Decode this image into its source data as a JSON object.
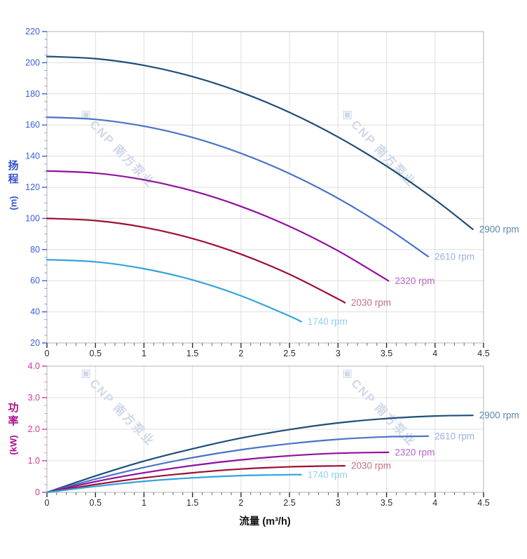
{
  "page": {
    "background": "#ffffff"
  },
  "watermark": {
    "logo": "◈",
    "text": "CNP 南方泵业",
    "color": "#cfd9e8"
  },
  "x_axis": {
    "title": "流量 (m³/h)",
    "ticks": [
      "0",
      "0.5",
      "1",
      "1.5",
      "2",
      "2.5",
      "3",
      "3.5",
      "4",
      "4.5"
    ],
    "tick_color": "#2b2b2b",
    "title_color": "#111111"
  },
  "chart_data": [
    {
      "type": "line",
      "name": "head-curves",
      "title": "",
      "xlabel": "流量 (m³/h)",
      "ylabel": "扬程 (m)",
      "ylabel_stack": [
        "扬",
        "程"
      ],
      "ylabel_unit": "(m)",
      "axis_title_color": "#3350d0",
      "tick_label_color": "#3c5fd8",
      "tick_mark_color": "#3c5fd8",
      "xlim": [
        0,
        4.5
      ],
      "ylim": [
        20,
        220
      ],
      "x_major": 0.5,
      "x_minor": 0.1,
      "y_major": 20,
      "y_minor": 5,
      "grid": true,
      "y_ticks": [
        {
          "v": 220,
          "label": "220"
        },
        {
          "v": 200,
          "label": "200"
        },
        {
          "v": 180,
          "label": "180"
        },
        {
          "v": 160,
          "label": "160"
        },
        {
          "v": 140,
          "label": "140"
        },
        {
          "v": 120,
          "label": "120"
        },
        {
          "v": 100,
          "label": "100"
        },
        {
          "v": 80,
          "label": "80"
        },
        {
          "v": 60,
          "label": "60"
        },
        {
          "v": 40,
          "label": "40"
        },
        {
          "v": 20,
          "label": "20"
        }
      ],
      "series": [
        {
          "name": "2900 rpm",
          "color": "#1e4e79",
          "label_color": "#5d86a6",
          "points": [
            [
              0,
              204
            ],
            [
              0.5,
              202.6
            ],
            [
              1,
              198.3
            ],
            [
              1.5,
              191.1
            ],
            [
              2,
              181.0
            ],
            [
              2.5,
              168.1
            ],
            [
              3,
              152.3
            ],
            [
              3.5,
              133.6
            ],
            [
              4,
              112.0
            ],
            [
              4.39,
              93.0
            ]
          ]
        },
        {
          "name": "2610 rpm",
          "color": "#4973c8",
          "label_color": "#97b1e3",
          "points": [
            [
              0,
              165
            ],
            [
              0.5,
              163.6
            ],
            [
              1,
              159.2
            ],
            [
              1.5,
              152.0
            ],
            [
              2,
              141.8
            ],
            [
              2.5,
              128.8
            ],
            [
              3,
              112.9
            ],
            [
              3.5,
              94.0
            ],
            [
              3.93,
              75.5
            ]
          ]
        },
        {
          "name": "2320 rpm",
          "color": "#90109d",
          "label_color": "#b667c6",
          "points": [
            [
              0,
              130.5
            ],
            [
              0.5,
              129.1
            ],
            [
              1,
              124.8
            ],
            [
              1.5,
              117.7
            ],
            [
              2,
              107.7
            ],
            [
              2.5,
              94.9
            ],
            [
              3,
              79.2
            ],
            [
              3.52,
              59.9
            ]
          ]
        },
        {
          "name": "2030 rpm",
          "color": "#9d1030",
          "label_color": "#c4707f",
          "points": [
            [
              0,
              100
            ],
            [
              0.5,
              98.6
            ],
            [
              1,
              94.3
            ],
            [
              1.5,
              87.1
            ],
            [
              2,
              77.0
            ],
            [
              2.5,
              64.1
            ],
            [
              3,
              48.3
            ],
            [
              3.07,
              45.8
            ]
          ]
        },
        {
          "name": "1740 rpm",
          "color": "#33a3df",
          "label_color": "#8fd0f3",
          "points": [
            [
              0,
              73.5
            ],
            [
              0.5,
              72.1
            ],
            [
              1,
              67.7
            ],
            [
              1.5,
              60.5
            ],
            [
              2,
              50.3
            ],
            [
              2.5,
              37.3
            ],
            [
              2.62,
              33.7
            ]
          ]
        }
      ]
    },
    {
      "type": "line",
      "name": "power-curves",
      "title": "",
      "xlabel": "流量 (m³/h)",
      "ylabel": "功率 (kW)",
      "ylabel_stack": [
        "功",
        "率"
      ],
      "ylabel_unit": "(kW)",
      "axis_title_color": "#a9118e",
      "tick_label_color": "#d8359c",
      "tick_mark_color": "#d8359c",
      "xlim": [
        0,
        4.5
      ],
      "ylim": [
        0,
        4
      ],
      "x_major": 0.5,
      "x_minor": 0.1,
      "y_major": 1,
      "y_minor": 0.25,
      "grid": true,
      "y_ticks": [
        {
          "v": 4,
          "label": "4.0"
        },
        {
          "v": 3,
          "label": "3.0"
        },
        {
          "v": 2,
          "label": "2.0"
        },
        {
          "v": 1,
          "label": "1.0"
        },
        {
          "v": 0,
          "label": "0"
        }
      ],
      "series": [
        {
          "name": "2900 rpm",
          "color": "#1e4e79",
          "label_color": "#5d86a6",
          "points": [
            [
              0,
              0
            ],
            [
              0.5,
              0.52
            ],
            [
              1,
              0.99
            ],
            [
              1.5,
              1.38
            ],
            [
              2,
              1.72
            ],
            [
              2.5,
              1.99
            ],
            [
              3,
              2.2
            ],
            [
              3.5,
              2.34
            ],
            [
              4,
              2.42
            ],
            [
              4.39,
              2.44
            ]
          ]
        },
        {
          "name": "2610 rpm",
          "color": "#4973c8",
          "label_color": "#97b1e3",
          "points": [
            [
              0,
              0
            ],
            [
              0.5,
              0.42
            ],
            [
              1,
              0.79
            ],
            [
              1.5,
              1.1
            ],
            [
              2,
              1.35
            ],
            [
              2.5,
              1.54
            ],
            [
              3,
              1.68
            ],
            [
              3.5,
              1.76
            ],
            [
              3.93,
              1.78
            ]
          ]
        },
        {
          "name": "2320 rpm",
          "color": "#90109d",
          "label_color": "#b667c6",
          "points": [
            [
              0,
              0
            ],
            [
              0.5,
              0.34
            ],
            [
              1,
              0.62
            ],
            [
              1.5,
              0.85
            ],
            [
              2,
              1.03
            ],
            [
              2.5,
              1.16
            ],
            [
              3,
              1.24
            ],
            [
              3.52,
              1.27
            ]
          ]
        },
        {
          "name": "2030 rpm",
          "color": "#9d1030",
          "label_color": "#c4707f",
          "points": [
            [
              0,
              0
            ],
            [
              0.5,
              0.25
            ],
            [
              1,
              0.46
            ],
            [
              1.5,
              0.62
            ],
            [
              2,
              0.74
            ],
            [
              2.5,
              0.81
            ],
            [
              3,
              0.84
            ],
            [
              3.07,
              0.84
            ]
          ]
        },
        {
          "name": "1740 rpm",
          "color": "#33a3df",
          "label_color": "#8fd0f3",
          "points": [
            [
              0,
              0
            ],
            [
              0.5,
              0.19
            ],
            [
              1,
              0.35
            ],
            [
              1.5,
              0.46
            ],
            [
              2,
              0.53
            ],
            [
              2.5,
              0.56
            ],
            [
              2.62,
              0.56
            ]
          ]
        }
      ]
    }
  ]
}
